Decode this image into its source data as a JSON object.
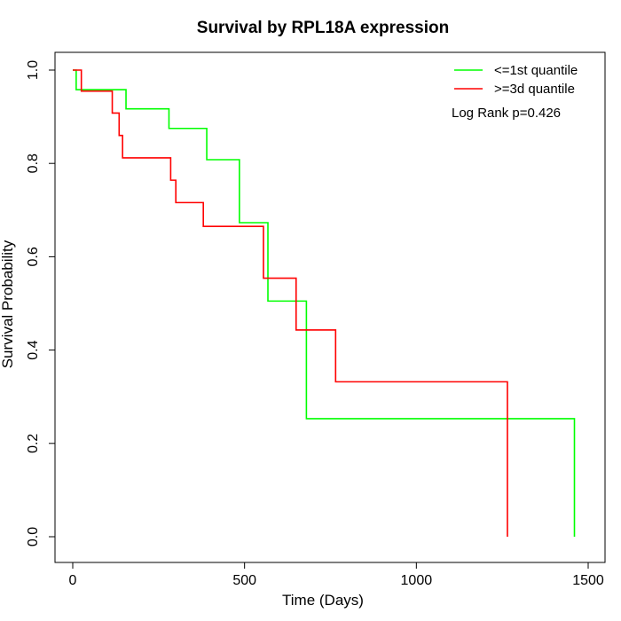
{
  "chart_data": {
    "type": "line",
    "title": "Survival by RPL18A expression",
    "xlabel": "Time (Days)",
    "ylabel": "Survival Probability",
    "xlim": [
      0,
      1500
    ],
    "ylim": [
      0,
      1
    ],
    "x_ticks": [
      0,
      500,
      1000,
      1500
    ],
    "y_ticks": [
      0.0,
      0.2,
      0.4,
      0.6,
      0.8,
      1.0
    ],
    "x_tick_labels": [
      "0",
      "500",
      "1000",
      "1500"
    ],
    "y_tick_labels": [
      "0.0",
      "0.2",
      "0.4",
      "0.6",
      "0.8",
      "1.0"
    ],
    "legend_position": "top-right",
    "annotation": "Log Rank p=0.426",
    "grid": false,
    "series": [
      {
        "name": "<=1st quantile",
        "color": "#00ff00",
        "step": true,
        "x": [
          0,
          10,
          155,
          280,
          390,
          485,
          568,
          680,
          1460,
          1460
        ],
        "y": [
          1.0,
          0.958,
          0.917,
          0.875,
          0.808,
          0.673,
          0.505,
          0.253,
          0.253,
          0.0
        ]
      },
      {
        "name": ">=3d quantile",
        "color": "#ff0000",
        "step": true,
        "x": [
          0,
          25,
          115,
          135,
          145,
          285,
          300,
          380,
          555,
          650,
          765,
          1265,
          1265
        ],
        "y": [
          1.0,
          0.955,
          0.908,
          0.86,
          0.812,
          0.764,
          0.716,
          0.665,
          0.554,
          0.443,
          0.332,
          0.332,
          0.0
        ]
      }
    ]
  }
}
